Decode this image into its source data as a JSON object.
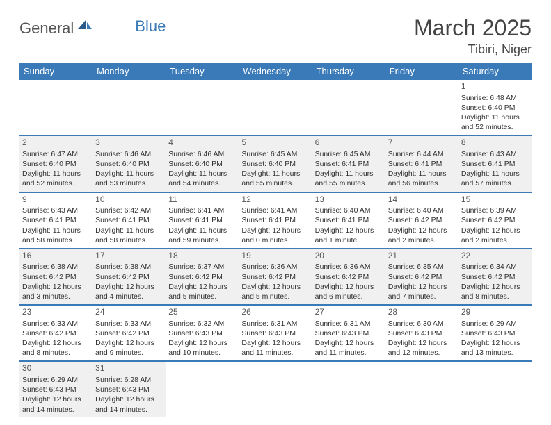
{
  "brand": {
    "part1": "General",
    "part2": "Blue",
    "accent_color": "#3a7ab8"
  },
  "title": "March 2025",
  "location": "Tibiri, Niger",
  "header_bg": "#3a7ab8",
  "header_fg": "#ffffff",
  "weekdays": [
    "Sunday",
    "Monday",
    "Tuesday",
    "Wednesday",
    "Thursday",
    "Friday",
    "Saturday"
  ],
  "alt_row_bg": "#f0f0f0",
  "days": {
    "1": {
      "sunrise": "6:48 AM",
      "sunset": "6:40 PM",
      "daylight": "11 hours and 52 minutes."
    },
    "2": {
      "sunrise": "6:47 AM",
      "sunset": "6:40 PM",
      "daylight": "11 hours and 52 minutes."
    },
    "3": {
      "sunrise": "6:46 AM",
      "sunset": "6:40 PM",
      "daylight": "11 hours and 53 minutes."
    },
    "4": {
      "sunrise": "6:46 AM",
      "sunset": "6:40 PM",
      "daylight": "11 hours and 54 minutes."
    },
    "5": {
      "sunrise": "6:45 AM",
      "sunset": "6:40 PM",
      "daylight": "11 hours and 55 minutes."
    },
    "6": {
      "sunrise": "6:45 AM",
      "sunset": "6:41 PM",
      "daylight": "11 hours and 55 minutes."
    },
    "7": {
      "sunrise": "6:44 AM",
      "sunset": "6:41 PM",
      "daylight": "11 hours and 56 minutes."
    },
    "8": {
      "sunrise": "6:43 AM",
      "sunset": "6:41 PM",
      "daylight": "11 hours and 57 minutes."
    },
    "9": {
      "sunrise": "6:43 AM",
      "sunset": "6:41 PM",
      "daylight": "11 hours and 58 minutes."
    },
    "10": {
      "sunrise": "6:42 AM",
      "sunset": "6:41 PM",
      "daylight": "11 hours and 58 minutes."
    },
    "11": {
      "sunrise": "6:41 AM",
      "sunset": "6:41 PM",
      "daylight": "11 hours and 59 minutes."
    },
    "12": {
      "sunrise": "6:41 AM",
      "sunset": "6:41 PM",
      "daylight": "12 hours and 0 minutes."
    },
    "13": {
      "sunrise": "6:40 AM",
      "sunset": "6:41 PM",
      "daylight": "12 hours and 1 minute."
    },
    "14": {
      "sunrise": "6:40 AM",
      "sunset": "6:42 PM",
      "daylight": "12 hours and 2 minutes."
    },
    "15": {
      "sunrise": "6:39 AM",
      "sunset": "6:42 PM",
      "daylight": "12 hours and 2 minutes."
    },
    "16": {
      "sunrise": "6:38 AM",
      "sunset": "6:42 PM",
      "daylight": "12 hours and 3 minutes."
    },
    "17": {
      "sunrise": "6:38 AM",
      "sunset": "6:42 PM",
      "daylight": "12 hours and 4 minutes."
    },
    "18": {
      "sunrise": "6:37 AM",
      "sunset": "6:42 PM",
      "daylight": "12 hours and 5 minutes."
    },
    "19": {
      "sunrise": "6:36 AM",
      "sunset": "6:42 PM",
      "daylight": "12 hours and 5 minutes."
    },
    "20": {
      "sunrise": "6:36 AM",
      "sunset": "6:42 PM",
      "daylight": "12 hours and 6 minutes."
    },
    "21": {
      "sunrise": "6:35 AM",
      "sunset": "6:42 PM",
      "daylight": "12 hours and 7 minutes."
    },
    "22": {
      "sunrise": "6:34 AM",
      "sunset": "6:42 PM",
      "daylight": "12 hours and 8 minutes."
    },
    "23": {
      "sunrise": "6:33 AM",
      "sunset": "6:42 PM",
      "daylight": "12 hours and 8 minutes."
    },
    "24": {
      "sunrise": "6:33 AM",
      "sunset": "6:42 PM",
      "daylight": "12 hours and 9 minutes."
    },
    "25": {
      "sunrise": "6:32 AM",
      "sunset": "6:43 PM",
      "daylight": "12 hours and 10 minutes."
    },
    "26": {
      "sunrise": "6:31 AM",
      "sunset": "6:43 PM",
      "daylight": "12 hours and 11 minutes."
    },
    "27": {
      "sunrise": "6:31 AM",
      "sunset": "6:43 PM",
      "daylight": "12 hours and 11 minutes."
    },
    "28": {
      "sunrise": "6:30 AM",
      "sunset": "6:43 PM",
      "daylight": "12 hours and 12 minutes."
    },
    "29": {
      "sunrise": "6:29 AM",
      "sunset": "6:43 PM",
      "daylight": "12 hours and 13 minutes."
    },
    "30": {
      "sunrise": "6:29 AM",
      "sunset": "6:43 PM",
      "daylight": "12 hours and 14 minutes."
    },
    "31": {
      "sunrise": "6:28 AM",
      "sunset": "6:43 PM",
      "daylight": "12 hours and 14 minutes."
    }
  },
  "labels": {
    "sunrise": "Sunrise:",
    "sunset": "Sunset:",
    "daylight": "Daylight:"
  },
  "grid": [
    [
      null,
      null,
      null,
      null,
      null,
      null,
      "1"
    ],
    [
      "2",
      "3",
      "4",
      "5",
      "6",
      "7",
      "8"
    ],
    [
      "9",
      "10",
      "11",
      "12",
      "13",
      "14",
      "15"
    ],
    [
      "16",
      "17",
      "18",
      "19",
      "20",
      "21",
      "22"
    ],
    [
      "23",
      "24",
      "25",
      "26",
      "27",
      "28",
      "29"
    ],
    [
      "30",
      "31",
      null,
      null,
      null,
      null,
      null
    ]
  ],
  "alt_rows": [
    1,
    3,
    5
  ]
}
